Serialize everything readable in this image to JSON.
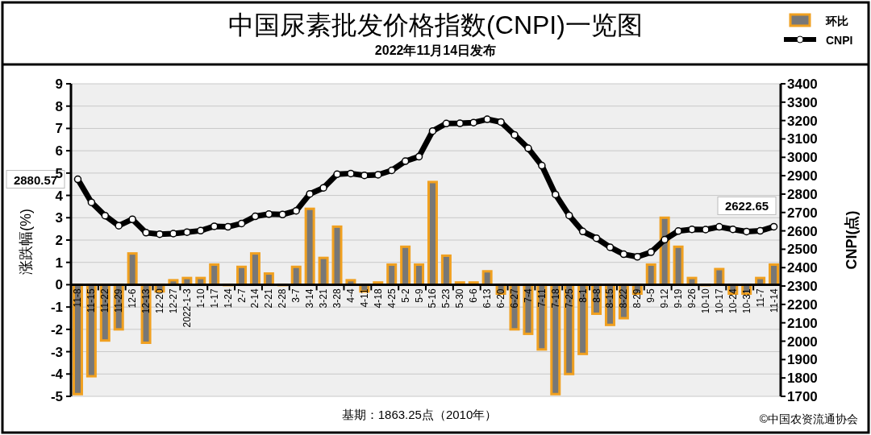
{
  "chart_data": {
    "type": "bar",
    "title": "中国尿素批发价格指数(CNPI)一览图",
    "subtitle": "2022年11月14日发布",
    "ylabel": "涨跌幅(%)",
    "y2label": "CNPI(点)",
    "categories": [
      "11-8",
      "11-15",
      "11-22",
      "11-29",
      "12-6",
      "12-13",
      "12-20",
      "12-27",
      "2022-1-3",
      "1-10",
      "1-17",
      "1-24",
      "2-7",
      "2-14",
      "2-21",
      "2-28",
      "3-7",
      "3-14",
      "3-21",
      "3-28",
      "4-4",
      "4-11",
      "4-18",
      "4-25",
      "5-2",
      "5-9",
      "5-16",
      "5-23",
      "5-30",
      "6-6",
      "6-13",
      "6-20",
      "6-27",
      "7-4",
      "7-11",
      "7-18",
      "7-25",
      "8-1",
      "8-8",
      "8-15",
      "8-22",
      "8-29",
      "9-5",
      "9-12",
      "9-19",
      "9-26",
      "10-10",
      "10-17",
      "10-24",
      "10-31",
      "11-7",
      "11-14"
    ],
    "series": [
      {
        "name": "环比",
        "color": "#f0a020",
        "values": [
          -4.9,
          -4.1,
          -2.5,
          -2.0,
          1.4,
          -2.6,
          -0.3,
          0.2,
          0.3,
          0.3,
          0.9,
          0.0,
          0.8,
          1.4,
          0.5,
          0.0,
          0.8,
          3.4,
          1.2,
          2.6,
          0.2,
          -0.3,
          0.1,
          0.9,
          1.7,
          0.9,
          4.6,
          1.3,
          0.1,
          0.1,
          0.6,
          -0.4,
          -2.0,
          -2.2,
          -2.9,
          -4.9,
          -4.0,
          -3.1,
          -1.3,
          -1.8,
          -1.5,
          -0.4,
          0.9,
          3.0,
          1.7,
          0.3,
          0.0,
          0.7,
          -0.4,
          -0.4,
          0.3,
          0.9
        ]
      },
      {
        "name": "CNPI",
        "type": "line",
        "axis": "y2",
        "color": "#000000",
        "values": [
          2880.57,
          2755,
          2683,
          2628,
          2663,
          2590,
          2582,
          2585,
          2593,
          2601,
          2625,
          2622,
          2640,
          2679,
          2691,
          2689,
          2709,
          2801,
          2834,
          2908,
          2912,
          2902,
          2905,
          2929,
          2979,
          3004,
          3143,
          3184,
          3185,
          3189,
          3207,
          3192,
          3122,
          3049,
          2955,
          2798,
          2684,
          2597,
          2560,
          2511,
          2473,
          2459,
          2484,
          2552,
          2599,
          2608,
          2607,
          2622,
          2608,
          2596,
          2600,
          2622.65
        ],
        "value_labels": [
          "2880.57",
          null,
          null,
          null,
          null,
          null,
          null,
          null,
          null,
          null,
          null,
          null,
          null,
          null,
          null,
          null,
          null,
          null,
          null,
          null,
          null,
          null,
          null,
          null,
          null,
          null,
          null,
          null,
          null,
          null,
          null,
          null,
          null,
          null,
          null,
          null,
          null,
          null,
          null,
          null,
          null,
          null,
          null,
          null,
          null,
          null,
          null,
          null,
          null,
          null,
          null,
          "2622.65"
        ]
      }
    ],
    "ylim": [
      -5,
      9
    ],
    "yticks": [
      -5,
      -4,
      -3,
      -2,
      -1,
      0,
      1,
      2,
      3,
      4,
      5,
      6,
      7,
      8,
      9
    ],
    "y2lim": [
      1700,
      3400
    ],
    "y2ticks": [
      1700,
      1800,
      1900,
      2000,
      2100,
      2200,
      2300,
      2400,
      2500,
      2600,
      2700,
      2800,
      2900,
      3000,
      3100,
      3200,
      3300,
      3400
    ],
    "grid": "y",
    "legend": "top right",
    "marker": "circle",
    "annotations": [
      "基期：1863.25点（2010年）",
      "©中国农资流通协会"
    ]
  }
}
